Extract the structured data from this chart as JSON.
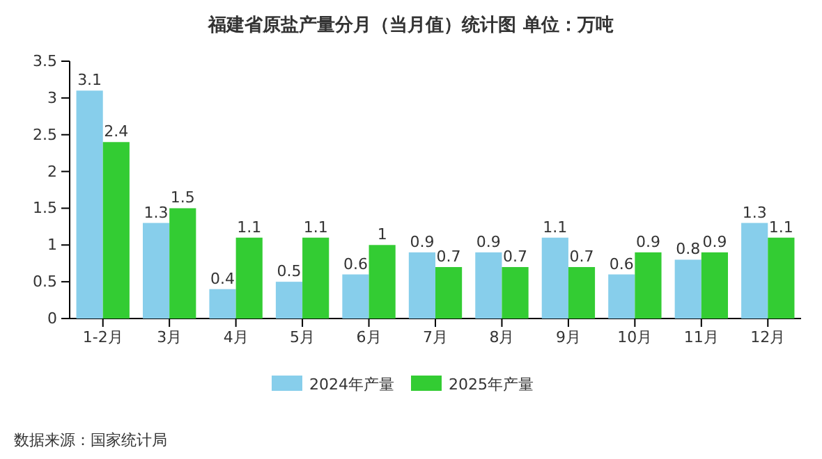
{
  "chart_data": {
    "type": "bar",
    "title": "福建省原盐产量分月（当月值）统计图 单位：万吨",
    "categories": [
      "1-2月",
      "3月",
      "4月",
      "5月",
      "6月",
      "7月",
      "8月",
      "9月",
      "10月",
      "11月",
      "12月"
    ],
    "series": [
      {
        "name": "2024年产量",
        "color": "#87ceeb",
        "values": [
          3.1,
          1.3,
          0.4,
          0.5,
          0.6,
          0.9,
          0.9,
          1.1,
          0.6,
          0.8,
          1.3
        ]
      },
      {
        "name": "2025年产量",
        "color": "#33cc33",
        "values": [
          2.4,
          1.5,
          1.1,
          1.1,
          1,
          0.7,
          0.7,
          0.7,
          0.9,
          0.9,
          1.1
        ]
      }
    ],
    "ylim": [
      0,
      3.5
    ],
    "yticks": [
      0,
      0.5,
      1,
      1.5,
      2,
      2.5,
      3,
      3.5
    ],
    "data_labels": true,
    "legend": "bottom",
    "annotations": [
      "数据来源：国家统计局"
    ]
  }
}
